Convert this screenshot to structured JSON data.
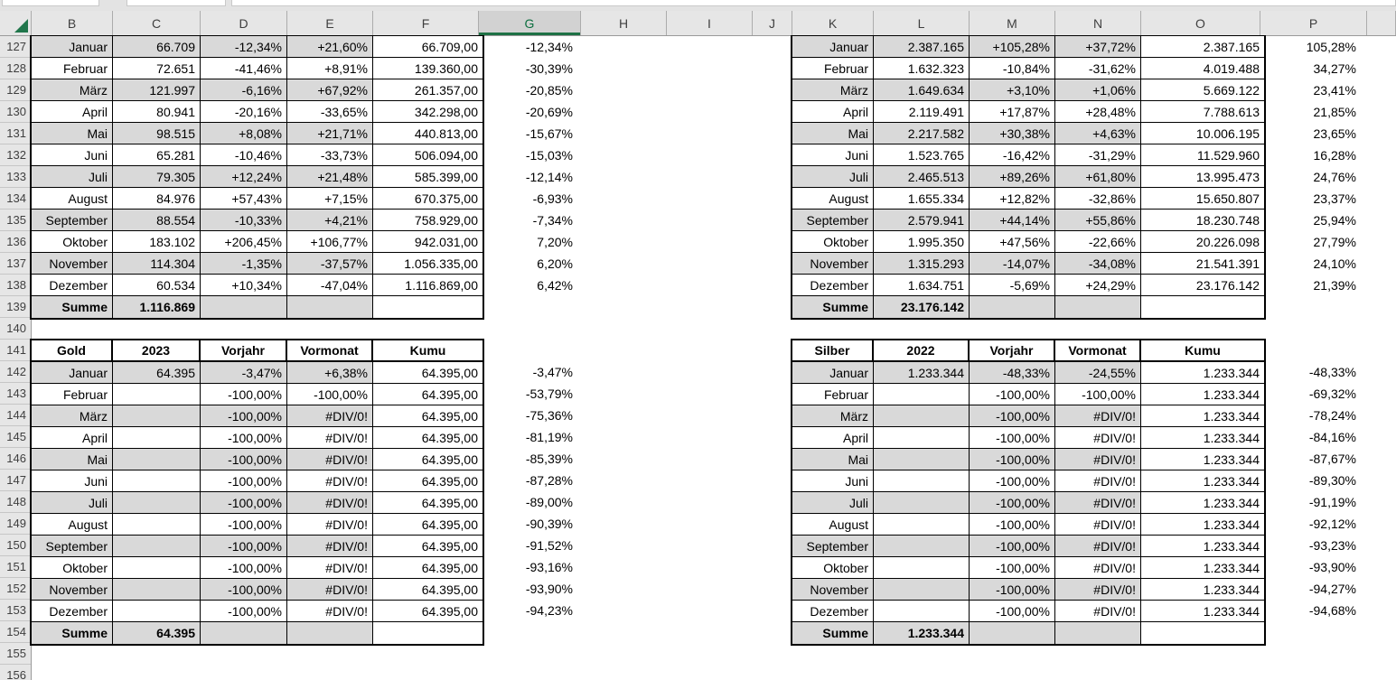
{
  "sheet": {
    "selected_column": "G",
    "column_headers": [
      "B",
      "C",
      "D",
      "E",
      "F",
      "G",
      "H",
      "I",
      "J",
      "K",
      "L",
      "M",
      "N",
      "O",
      "P",
      ""
    ],
    "row_numbers": [
      "127",
      "128",
      "129",
      "130",
      "131",
      "132",
      "133",
      "134",
      "135",
      "136",
      "137",
      "138",
      "139",
      "140",
      "141",
      "142",
      "143",
      "144",
      "145",
      "146",
      "147",
      "148",
      "149",
      "150",
      "151",
      "152",
      "153",
      "154",
      "155",
      "156"
    ]
  },
  "tables": {
    "top_left": {
      "rows": [
        {
          "month": "Januar",
          "value": "66.709",
          "vorjahr": "-12,34%",
          "vormonat": "+21,60%",
          "kumu": "66.709,00",
          "kumu_flag": false
        },
        {
          "month": "Februar",
          "value": "72.651",
          "vorjahr": "-41,46%",
          "vormonat": "+8,91%",
          "kumu": "139.360,00",
          "kumu_flag": true
        },
        {
          "month": "März",
          "value": "121.997",
          "vorjahr": "-6,16%",
          "vormonat": "+67,92%",
          "kumu": "261.357,00",
          "kumu_flag": true
        },
        {
          "month": "April",
          "value": "80.941",
          "vorjahr": "-20,16%",
          "vormonat": "-33,65%",
          "kumu": "342.298,00",
          "kumu_flag": true
        },
        {
          "month": "Mai",
          "value": "98.515",
          "vorjahr": "+8,08%",
          "vormonat": "+21,71%",
          "kumu": "440.813,00",
          "kumu_flag": true
        },
        {
          "month": "Juni",
          "value": "65.281",
          "vorjahr": "-10,46%",
          "vormonat": "-33,73%",
          "kumu": "506.094,00",
          "kumu_flag": true
        },
        {
          "month": "Juli",
          "value": "79.305",
          "vorjahr": "+12,24%",
          "vormonat": "+21,48%",
          "kumu": "585.399,00",
          "kumu_flag": true
        },
        {
          "month": "August",
          "value": "84.976",
          "vorjahr": "+57,43%",
          "vormonat": "+7,15%",
          "kumu": "670.375,00",
          "kumu_flag": true
        },
        {
          "month": "September",
          "value": "88.554",
          "vorjahr": "-10,33%",
          "vormonat": "+4,21%",
          "kumu": "758.929,00",
          "kumu_flag": true
        },
        {
          "month": "Oktober",
          "value": "183.102",
          "vorjahr": "+206,45%",
          "vormonat": "+106,77%",
          "kumu": "942.031,00",
          "kumu_flag": true
        },
        {
          "month": "November",
          "value": "114.304",
          "vorjahr": "-1,35%",
          "vormonat": "-37,57%",
          "kumu": "1.056.335,00",
          "kumu_flag": true
        },
        {
          "month": "Dezember",
          "value": "60.534",
          "vorjahr": "+10,34%",
          "vormonat": "-47,04%",
          "kumu": "1.116.869,00",
          "kumu_flag": true
        }
      ],
      "summe_label": "Summe",
      "summe_value": "1.116.869",
      "summe_flag": false
    },
    "top_right": {
      "rows": [
        {
          "month": "Januar",
          "value": "2.387.165",
          "vorjahr": "+105,28%",
          "vormonat": "+37,72%",
          "kumu": "2.387.165"
        },
        {
          "month": "Februar",
          "value": "1.632.323",
          "vorjahr": "-10,84%",
          "vormonat": "-31,62%",
          "kumu": "4.019.488"
        },
        {
          "month": "März",
          "value": "1.649.634",
          "vorjahr": "+3,10%",
          "vormonat": "+1,06%",
          "kumu": "5.669.122"
        },
        {
          "month": "April",
          "value": "2.119.491",
          "vorjahr": "+17,87%",
          "vormonat": "+28,48%",
          "kumu": "7.788.613"
        },
        {
          "month": "Mai",
          "value": "2.217.582",
          "vorjahr": "+30,38%",
          "vormonat": "+4,63%",
          "kumu": "10.006.195"
        },
        {
          "month": "Juni",
          "value": "1.523.765",
          "vorjahr": "-16,42%",
          "vormonat": "-31,29%",
          "kumu": "11.529.960"
        },
        {
          "month": "Juli",
          "value": "2.465.513",
          "vorjahr": "+89,26%",
          "vormonat": "+61,80%",
          "kumu": "13.995.473"
        },
        {
          "month": "August",
          "value": "1.655.334",
          "vorjahr": "+12,82%",
          "vormonat": "-32,86%",
          "kumu": "15.650.807"
        },
        {
          "month": "September",
          "value": "2.579.941",
          "vorjahr": "+44,14%",
          "vormonat": "+55,86%",
          "kumu": "18.230.748"
        },
        {
          "month": "Oktober",
          "value": "1.995.350",
          "vorjahr": "+47,56%",
          "vormonat": "-22,66%",
          "kumu": "20.226.098"
        },
        {
          "month": "November",
          "value": "1.315.293",
          "vorjahr": "-14,07%",
          "vormonat": "-34,08%",
          "kumu": "21.541.391"
        },
        {
          "month": "Dezember",
          "value": "1.634.751",
          "vorjahr": "-5,69%",
          "vormonat": "+24,29%",
          "kumu": "23.176.142"
        }
      ],
      "summe_label": "Summe",
      "summe_value": "23.176.142",
      "summe_flag": false
    },
    "gold": {
      "title": "Gold",
      "year": "2023",
      "vorjahr_label": "Vorjahr",
      "vormonat_label": "Vormonat",
      "kumu_label": "Kumu",
      "rows": [
        {
          "month": "Januar",
          "value": "64.395",
          "vorjahr": "-3,47%",
          "vormonat": "+6,38%",
          "kumu": "64.395,00"
        },
        {
          "month": "Februar",
          "value": "",
          "vorjahr": "-100,00%",
          "vormonat": "-100,00%",
          "kumu": "64.395,00",
          "kumu_flag": true
        },
        {
          "month": "März",
          "value": "",
          "vorjahr": "-100,00%",
          "vormonat": "#DIV/0!",
          "kumu": "64.395,00",
          "vormonat_flag": true,
          "kumu_flag": true
        },
        {
          "month": "April",
          "value": "",
          "vorjahr": "-100,00%",
          "vormonat": "#DIV/0!",
          "kumu": "64.395,00",
          "vormonat_flag": true,
          "kumu_flag": true
        },
        {
          "month": "Mai",
          "value": "",
          "vorjahr": "-100,00%",
          "vormonat": "#DIV/0!",
          "kumu": "64.395,00",
          "vormonat_flag": true,
          "kumu_flag": true
        },
        {
          "month": "Juni",
          "value": "",
          "vorjahr": "-100,00%",
          "vormonat": "#DIV/0!",
          "kumu": "64.395,00",
          "vormonat_flag": true,
          "kumu_flag": true
        },
        {
          "month": "Juli",
          "value": "",
          "vorjahr": "-100,00%",
          "vormonat": "#DIV/0!",
          "kumu": "64.395,00",
          "vormonat_flag": true,
          "kumu_flag": true
        },
        {
          "month": "August",
          "value": "",
          "vorjahr": "-100,00%",
          "vormonat": "#DIV/0!",
          "kumu": "64.395,00",
          "vormonat_flag": true,
          "kumu_flag": true
        },
        {
          "month": "September",
          "value": "",
          "vorjahr": "-100,00%",
          "vormonat": "#DIV/0!",
          "kumu": "64.395,00",
          "vormonat_flag": true,
          "kumu_flag": true
        },
        {
          "month": "Oktober",
          "value": "",
          "vorjahr": "-100,00%",
          "vormonat": "#DIV/0!",
          "kumu": "64.395,00",
          "vormonat_flag": true,
          "kumu_flag": true
        },
        {
          "month": "November",
          "value": "",
          "vorjahr": "-100,00%",
          "vormonat": "#DIV/0!",
          "kumu": "64.395,00",
          "vormonat_flag": true,
          "kumu_flag": true
        },
        {
          "month": "Dezember",
          "value": "",
          "vorjahr": "-100,00%",
          "vormonat": "#DIV/0!",
          "kumu": "64.395,00",
          "vormonat_flag": true,
          "kumu_flag": true
        }
      ],
      "summe_label": "Summe",
      "summe_value": "64.395",
      "summe_flag": true
    },
    "silber": {
      "title": "Silber",
      "year": "2022",
      "vorjahr_label": "Vorjahr",
      "vormonat_label": "Vormonat",
      "kumu_label": "Kumu",
      "rows": [
        {
          "month": "Januar",
          "value": "1.233.344",
          "vorjahr": "-48,33%",
          "vormonat": "-24,55%",
          "kumu": "1.233.344"
        },
        {
          "month": "Februar",
          "value": "",
          "vorjahr": "-100,00%",
          "vormonat": "-100,00%",
          "kumu": "1.233.344",
          "kumu_flag": true
        },
        {
          "month": "März",
          "value": "",
          "vorjahr": "-100,00%",
          "vormonat": "#DIV/0!",
          "kumu": "1.233.344",
          "vormonat_flag": true,
          "kumu_flag": true
        },
        {
          "month": "April",
          "value": "",
          "vorjahr": "-100,00%",
          "vormonat": "#DIV/0!",
          "kumu": "1.233.344",
          "vormonat_flag": true,
          "kumu_flag": true
        },
        {
          "month": "Mai",
          "value": "",
          "vorjahr": "-100,00%",
          "vormonat": "#DIV/0!",
          "kumu": "1.233.344",
          "vormonat_flag": true,
          "kumu_flag": true
        },
        {
          "month": "Juni",
          "value": "",
          "vorjahr": "-100,00%",
          "vormonat": "#DIV/0!",
          "kumu": "1.233.344",
          "vormonat_flag": true,
          "kumu_flag": true
        },
        {
          "month": "Juli",
          "value": "",
          "vorjahr": "-100,00%",
          "vormonat": "#DIV/0!",
          "kumu": "1.233.344",
          "vormonat_flag": true,
          "kumu_flag": true
        },
        {
          "month": "August",
          "value": "",
          "vorjahr": "-100,00%",
          "vormonat": "#DIV/0!",
          "kumu": "1.233.344",
          "vormonat_flag": true,
          "kumu_flag": true
        },
        {
          "month": "September",
          "value": "",
          "vorjahr": "-100,00%",
          "vormonat": "#DIV/0!",
          "kumu": "1.233.344",
          "vormonat_flag": true,
          "kumu_flag": true
        },
        {
          "month": "Oktober",
          "value": "",
          "vorjahr": "-100,00%",
          "vormonat": "#DIV/0!",
          "kumu": "1.233.344",
          "vormonat_flag": true,
          "kumu_flag": true
        },
        {
          "month": "November",
          "value": "",
          "vorjahr": "-100,00%",
          "vormonat": "#DIV/0!",
          "kumu": "1.233.344",
          "vormonat_flag": true,
          "kumu_flag": true
        },
        {
          "month": "Dezember",
          "value": "",
          "vorjahr": "-100,00%",
          "vormonat": "#DIV/0!",
          "kumu": "1.233.344",
          "vormonat_flag": true,
          "kumu_flag": true
        }
      ],
      "summe_label": "Summe",
      "summe_value": "1.233.344",
      "summe_flag": true
    }
  },
  "column_g": {
    "top": [
      "-12,34%",
      "-30,39%",
      "-20,85%",
      "-20,69%",
      "-15,67%",
      "-15,03%",
      "-12,14%",
      "-6,93%",
      "-7,34%",
      "7,20%",
      "6,20%",
      "6,42%"
    ],
    "bottom": [
      "-3,47%",
      "-53,79%",
      "-75,36%",
      "-81,19%",
      "-85,39%",
      "-87,28%",
      "-89,00%",
      "-90,39%",
      "-91,52%",
      "-93,16%",
      "-93,90%",
      "-94,23%"
    ]
  },
  "column_p": {
    "top": [
      "105,28%",
      "34,27%",
      "23,41%",
      "21,85%",
      "23,65%",
      "16,28%",
      "24,76%",
      "23,37%",
      "25,94%",
      "27,79%",
      "24,10%",
      "21,39%"
    ],
    "bottom": [
      "-48,33%",
      "-69,32%",
      "-78,24%",
      "-84,16%",
      "-87,67%",
      "-89,30%",
      "-91,19%",
      "-92,12%",
      "-93,23%",
      "-93,90%",
      "-94,27%",
      "-94,68%"
    ]
  }
}
